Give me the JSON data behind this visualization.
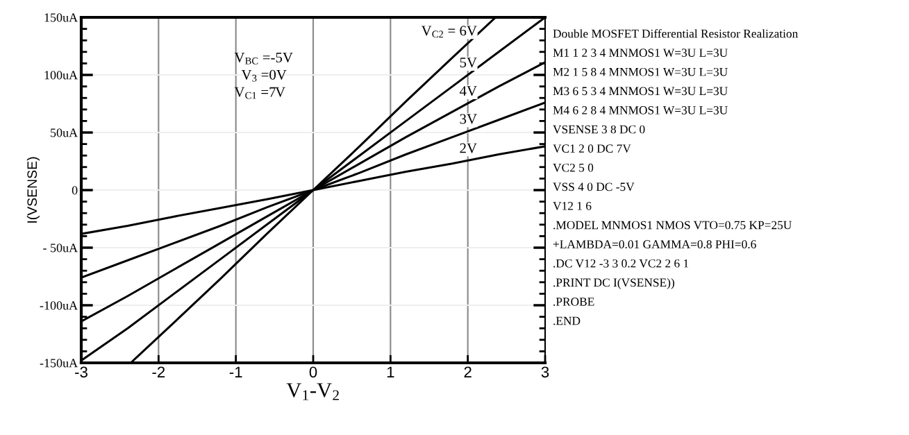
{
  "chart_data": {
    "type": "line",
    "xlabel": "V$_{1}$-V$_{2}$",
    "ylabel": "I(VSENSE)",
    "xlim": [
      -3,
      3
    ],
    "xticks": [
      -3,
      -2,
      -1,
      0,
      1,
      2,
      3
    ],
    "ylim": [
      -150,
      150
    ],
    "yticks": [
      {
        "value": -150,
        "label": "-150uA"
      },
      {
        "value": -100,
        "label": "-100uA"
      },
      {
        "value": -50,
        "label": "- 50uA"
      },
      0,
      {
        "value": 50,
        "label": "50uA"
      },
      {
        "value": 100,
        "label": "100uA"
      },
      {
        "value": 150,
        "label": "150uA"
      }
    ],
    "grid": true,
    "legend": false,
    "line_style": "solid",
    "marker": "none",
    "series": [
      {
        "name": "2V",
        "color": "#000000",
        "x": [
          -3,
          -2.4,
          -1.8,
          -1.2,
          -0.6,
          0,
          0.6,
          1.2,
          1.8,
          2.4,
          3
        ],
        "values": [
          -38,
          -31,
          -23,
          -15.5,
          -8,
          0,
          8,
          16,
          23,
          31,
          38
        ]
      },
      {
        "name": "3V",
        "color": "#000000",
        "x": [
          -3,
          -2.4,
          -1.8,
          -1.2,
          -0.6,
          0,
          0.6,
          1.2,
          1.8,
          2.4,
          3
        ],
        "values": [
          -76,
          -61,
          -46,
          -31,
          -15,
          0,
          15,
          31,
          46,
          61,
          76
        ]
      },
      {
        "name": "4V",
        "color": "#000000",
        "x": [
          -3,
          -2.4,
          -1.8,
          -1.2,
          -0.6,
          0,
          0.6,
          1.2,
          1.8,
          2.4,
          3
        ],
        "values": [
          -114,
          -92,
          -69,
          -46,
          -23,
          0,
          23,
          46,
          68,
          90,
          111
        ]
      },
      {
        "name": "5V",
        "color": "#000000",
        "x": [
          -3,
          -2.4,
          -1.8,
          -1.2,
          -0.6,
          0,
          0.6,
          1.2,
          1.8,
          2.4,
          3
        ],
        "values": [
          -148,
          -120,
          -90,
          -60,
          -30,
          0,
          30,
          60,
          90,
          120,
          150
        ]
      },
      {
        "name": "V$_{C2}$ = 6V",
        "color": "#000000",
        "x": [
          -2.36,
          -1.8,
          -1.2,
          -0.6,
          0,
          0.6,
          1.2,
          1.8,
          2.36
        ],
        "values": [
          -150,
          -115,
          -77,
          -38,
          0,
          38,
          77,
          115,
          150
        ]
      }
    ],
    "annotations": [
      "V$_{BC}$ =-5V",
      "V$_{3}$ =0V",
      "V$_{C1}$ =7V",
      "Double MOSFET Differential Resistor Realization",
      "M1 1 2 3 4 MNMOS1 W=3U L=3U",
      "M2 1 5 8 4 MNMOS1 W=3U L=3U",
      "M3 6 5 3 4 MNMOS1 W=3U L=3U",
      "M4 6 2 8 4 MNMOS1 W=3U L=3U",
      "VSENSE 3 8 DC 0",
      "VC1 2 0 DC 7V",
      "VC2 5 0",
      "VSS 4 0 DC -5V",
      "V12 1 6",
      ".MODEL MNMOS1 NMOS VTO=0.75 KP=25U",
      "+LAMBDA=0.01 GAMMA=0.8 PHI=0.6",
      ".DC V12 -3 3 0.2 VC2 2 6 1",
      ".PRINT DC I(VSENSE))",
      ".PROBE",
      ".END"
    ]
  }
}
